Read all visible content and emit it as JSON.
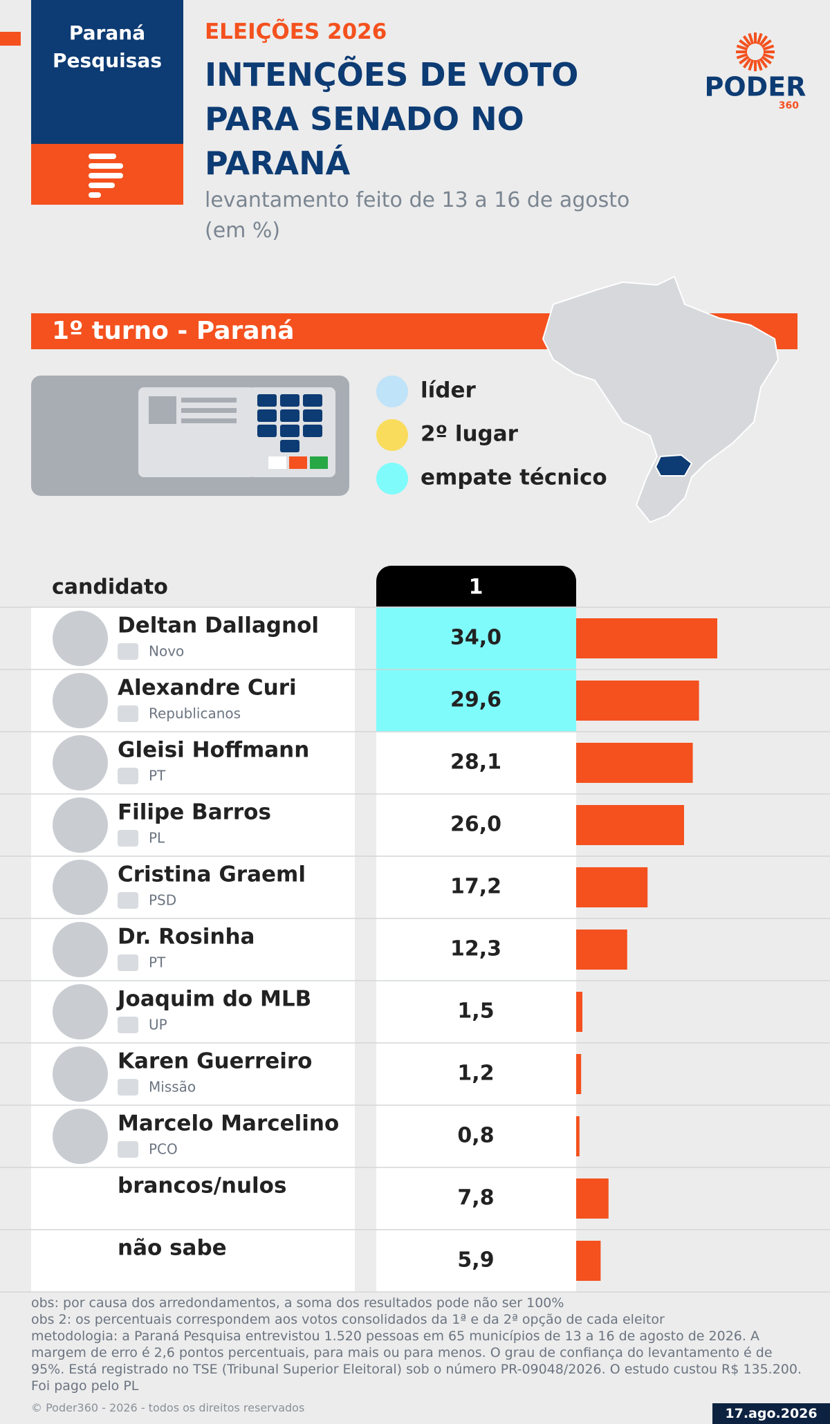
{
  "header": {
    "brand": "Paraná Pesquisas",
    "kicker": "ELEIÇÕES 2026",
    "title": "INTENÇÕES DE VOTO PARA SENADO NO PARANÁ",
    "subtitle": "levantamento feito de 13 a 16 de agosto (em %)",
    "logo": "PODER",
    "logo_sub": "360"
  },
  "section": "1º turno - Paraná",
  "legend": [
    {
      "label": "líder",
      "color": "#bfe3f8"
    },
    {
      "label": "2º lugar",
      "color": "#f9dc5c"
    },
    {
      "label": "empate técnico",
      "color": "#80fbfb"
    }
  ],
  "chart_data": {
    "type": "bar",
    "column_header": "candidato",
    "categories": [
      "Deltan Dallagnol",
      "Alexandre Curi",
      "Gleisi Hoffmann",
      "Filipe Barros",
      "Cristina Graeml",
      "Dr. Rosinha",
      "Joaquim do MLB",
      "Karen Guerreiro",
      "Marcelo Marcelino",
      "brancos/nulos",
      "não sabe"
    ],
    "parties": [
      "Novo",
      "Republicanos",
      "PT",
      "PL",
      "PSD",
      "PT",
      "UP",
      "Missão",
      "PCO",
      null,
      null
    ],
    "highlight": [
      2,
      2,
      null,
      null,
      null,
      null,
      null,
      null,
      null,
      null,
      null
    ],
    "series": [
      {
        "name": "1",
        "color": "#f4511e",
        "values": [
          34.0,
          29.6,
          28.1,
          26.0,
          17.2,
          12.3,
          1.5,
          1.2,
          0.8,
          7.8,
          5.9
        ],
        "value_labels": [
          "34,0",
          "29,6",
          "28,1",
          "26,0",
          "17,2",
          "12,3",
          "1,5",
          "1,2",
          "0,8",
          "7,8",
          "5,9"
        ]
      }
    ]
  },
  "notes": [
    "obs: por causa dos arredondamentos, a soma dos resultados pode não ser 100%",
    "obs 2: os percentuais correspondem aos votos consolidados da 1ª e da 2ª opção de cada eleitor",
    "metodologia: a Paraná Pesquisa entrevistou 1.520 pessoas em 65 municípios de 13 a 16 de agosto de 2026. A margem de erro é 2,6 pontos percentuais, para mais ou para menos. O grau de confiança do levantamento é de 95%. Está registrado no TSE (Tribunal Superior Eleitoral) sob o número PR-09048/2026. O estudo custou R$ 135.200. Foi pago pelo PL"
  ],
  "footer": {
    "copyright": "© Poder360 - 2026 - todos os direitos reservados",
    "date": "17.ago.2026"
  }
}
